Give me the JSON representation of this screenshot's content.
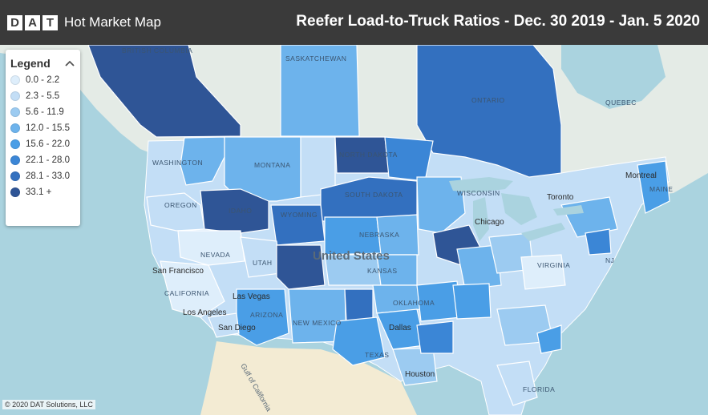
{
  "header": {
    "logo_letters": [
      "D",
      "A",
      "T"
    ],
    "app_title": "Hot Market Map",
    "map_title": "Reefer Load-to-Truck Ratios - Dec. 30 2019 - Jan. 5 2020"
  },
  "legend": {
    "title": "Legend",
    "items": [
      {
        "label": "0.0 - 2.2",
        "color": "#deeefb"
      },
      {
        "label": "2.3 - 5.5",
        "color": "#c3def6"
      },
      {
        "label": "5.6 - 11.9",
        "color": "#9ccbf1"
      },
      {
        "label": "12.0 - 15.5",
        "color": "#6db3ec"
      },
      {
        "label": "15.6 - 22.0",
        "color": "#4a9ee6"
      },
      {
        "label": "22.1 - 28.0",
        "color": "#3b86d6"
      },
      {
        "label": "28.1 - 33.0",
        "color": "#3370bf"
      },
      {
        "label": "33.1 +",
        "color": "#2f5596"
      }
    ]
  },
  "map_labels": {
    "regions": [
      "BRITISH COLUMBIA",
      "SASKATCHEWAN",
      "ONTARIO",
      "QUEBEC",
      "WASHINGTON",
      "MONTANA",
      "NORTH DAKOTA",
      "OREGON",
      "IDAHO",
      "WYOMING",
      "SOUTH DAKOTA",
      "NEVADA",
      "UTAH",
      "NEBRASKA",
      "KANSAS",
      "CALIFORNIA",
      "ARIZONA",
      "NEW MEXICO",
      "OKLAHOMA",
      "TEXAS",
      "FLORIDA",
      "MAINE",
      "WISCONSIN",
      "NJ",
      "VIRGINIA"
    ],
    "places": [
      "United States",
      "Chicago",
      "Montreal",
      "Toronto",
      "San Francisco",
      "Las Vegas",
      "Los Angeles",
      "San Diego",
      "Dallas",
      "Houston",
      "Gulf of California"
    ]
  },
  "copyright": "© 2020 DAT Solutions, LLC"
}
